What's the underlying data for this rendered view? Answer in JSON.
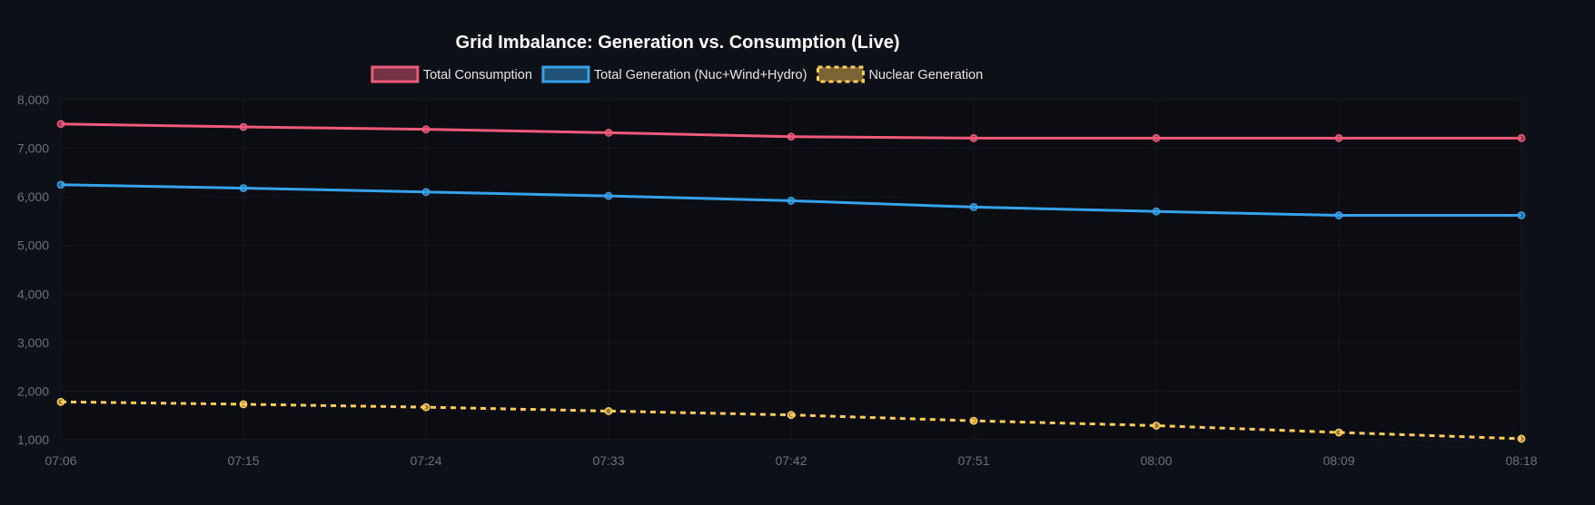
{
  "colors": {
    "background": "#0d1017",
    "plot_background": "#0b0d12",
    "grid": "#161a21",
    "tick_text": "#6b7079",
    "consumption": "#ef5a7a",
    "generation": "#36a2eb",
    "nuclear": "#ffcd56"
  },
  "chart_data": {
    "type": "line",
    "title": "Grid Imbalance: Generation vs. Consumption (Live)",
    "xlabel": "",
    "ylabel": "",
    "categories": [
      "07:06",
      "07:15",
      "07:24",
      "07:33",
      "07:42",
      "07:51",
      "08:00",
      "08:09",
      "08:18"
    ],
    "yticks": [
      "1,000",
      "2,000",
      "3,000",
      "4,000",
      "5,000",
      "6,000",
      "7,000",
      "8,000"
    ],
    "ylim": [
      1000,
      8000
    ],
    "grid": true,
    "legend_position": "top",
    "series": [
      {
        "name": "Total Consumption",
        "color": "#ef5a7a",
        "style": "solid",
        "values": [
          7500,
          7440,
          7390,
          7320,
          7240,
          7210,
          7210,
          7210,
          7210
        ]
      },
      {
        "name": "Total Generation (Nuc+Wind+Hydro)",
        "color": "#36a2eb",
        "style": "solid",
        "values": [
          6250,
          6180,
          6100,
          6020,
          5920,
          5790,
          5700,
          5620,
          5620
        ]
      },
      {
        "name": "Nuclear Generation",
        "color": "#ffcd56",
        "style": "dashed",
        "values": [
          1780,
          1730,
          1670,
          1590,
          1510,
          1390,
          1290,
          1150,
          1020
        ]
      }
    ]
  }
}
